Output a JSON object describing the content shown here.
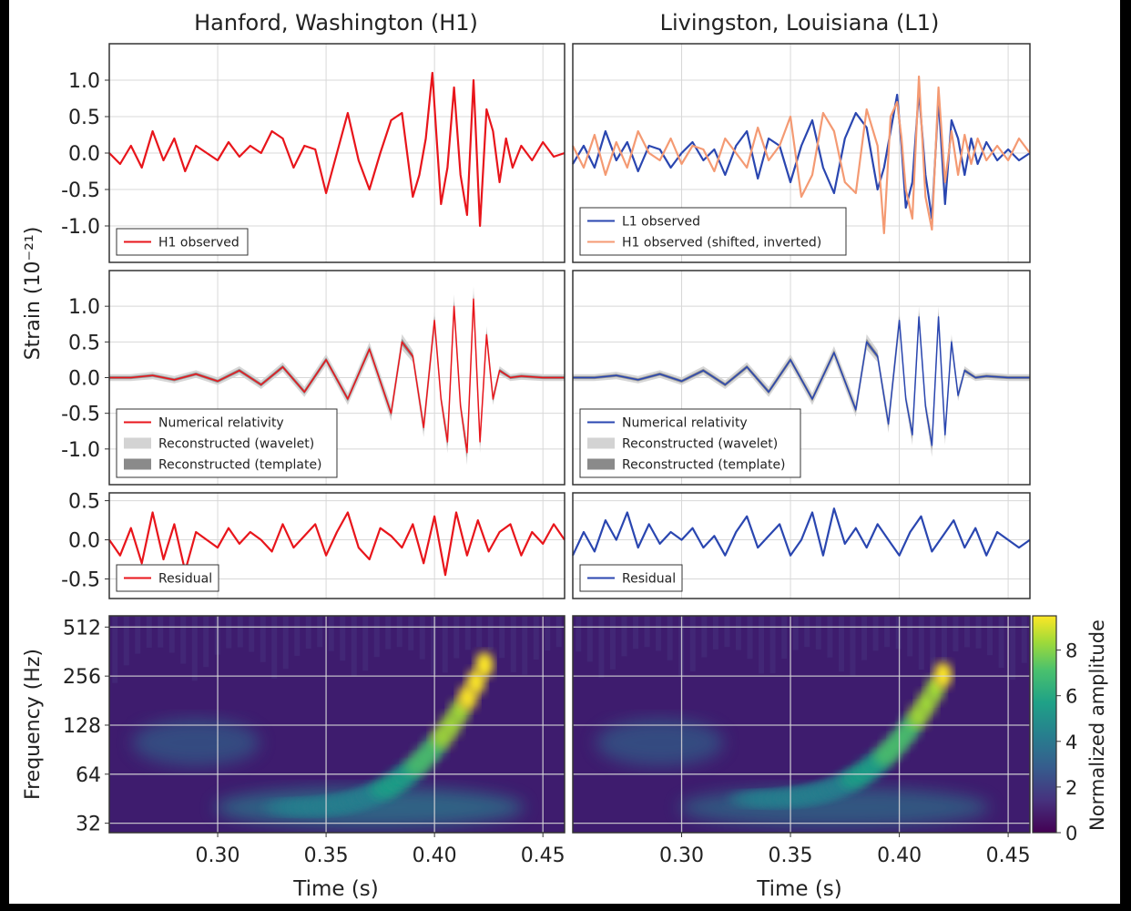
{
  "figure": {
    "ylabel_strain": "Strain (10⁻²¹)",
    "ylabel_freq": "Frequency (Hz)",
    "colorbar_label": "Normalized amplitude"
  },
  "colors": {
    "h1": "#e8151b",
    "l1": "#2a46b0",
    "h1_shifted": "#f49a73",
    "wavelet_band": "#d3d3d3",
    "template_band": "#8a8a8a"
  },
  "chart_data": [
    {
      "type": "line",
      "id": "h1_observed",
      "column": "H1",
      "title": "Hanford, Washington (H1)",
      "xlim": [
        0.25,
        0.46
      ],
      "ylim": [
        -1.5,
        1.5
      ],
      "yticks": [
        "1.0",
        "0.5",
        "0.0",
        "-0.5",
        "-1.0"
      ],
      "grid": true,
      "legend_position": "bottom-left",
      "series": [
        {
          "name": "H1 observed",
          "color": "#e8151b",
          "kind": "line",
          "x": [
            0.25,
            0.255,
            0.26,
            0.265,
            0.27,
            0.275,
            0.28,
            0.285,
            0.29,
            0.295,
            0.3,
            0.305,
            0.31,
            0.315,
            0.32,
            0.325,
            0.33,
            0.335,
            0.34,
            0.345,
            0.35,
            0.355,
            0.36,
            0.365,
            0.37,
            0.375,
            0.38,
            0.385,
            0.39,
            0.393,
            0.396,
            0.399,
            0.401,
            0.403,
            0.406,
            0.409,
            0.412,
            0.415,
            0.418,
            0.421,
            0.424,
            0.427,
            0.43,
            0.433,
            0.436,
            0.44,
            0.445,
            0.45,
            0.455,
            0.46
          ],
          "y": [
            0.0,
            -0.15,
            0.1,
            -0.2,
            0.3,
            -0.1,
            0.2,
            -0.25,
            0.1,
            0.0,
            -0.1,
            0.15,
            -0.05,
            0.1,
            0.0,
            0.3,
            0.2,
            -0.2,
            0.1,
            0.05,
            -0.55,
            0.0,
            0.55,
            -0.1,
            -0.5,
            0.0,
            0.45,
            0.55,
            -0.6,
            -0.3,
            0.2,
            1.1,
            0.2,
            -0.7,
            -0.2,
            0.9,
            -0.3,
            -0.85,
            1.0,
            -1.0,
            0.6,
            0.3,
            -0.4,
            0.2,
            -0.2,
            0.1,
            -0.1,
            0.15,
            -0.05,
            0.0
          ]
        }
      ]
    },
    {
      "type": "line",
      "id": "l1_observed",
      "column": "L1",
      "title": "Livingston, Louisiana (L1)",
      "xlim": [
        0.25,
        0.46
      ],
      "ylim": [
        -1.5,
        1.5
      ],
      "grid": true,
      "legend_position": "bottom-left",
      "series": [
        {
          "name": "L1 observed",
          "color": "#2a46b0",
          "kind": "line",
          "x": [
            0.25,
            0.255,
            0.26,
            0.265,
            0.27,
            0.275,
            0.28,
            0.285,
            0.29,
            0.295,
            0.3,
            0.305,
            0.31,
            0.315,
            0.32,
            0.325,
            0.33,
            0.335,
            0.34,
            0.345,
            0.35,
            0.355,
            0.36,
            0.365,
            0.37,
            0.375,
            0.38,
            0.385,
            0.39,
            0.393,
            0.396,
            0.399,
            0.401,
            0.403,
            0.406,
            0.409,
            0.412,
            0.415,
            0.418,
            0.421,
            0.424,
            0.427,
            0.43,
            0.433,
            0.436,
            0.44,
            0.445,
            0.45,
            0.455,
            0.46
          ],
          "y": [
            -0.15,
            0.1,
            -0.2,
            0.3,
            -0.1,
            0.15,
            -0.25,
            0.1,
            0.05,
            -0.2,
            0.0,
            0.15,
            -0.1,
            0.05,
            -0.3,
            0.1,
            0.3,
            -0.35,
            0.2,
            0.1,
            -0.4,
            0.1,
            0.45,
            -0.2,
            -0.55,
            0.2,
            0.55,
            0.35,
            -0.5,
            -0.2,
            0.3,
            0.8,
            0.1,
            -0.75,
            -0.4,
            0.85,
            -0.3,
            -0.9,
            0.75,
            -0.7,
            0.45,
            0.2,
            -0.3,
            0.2,
            -0.15,
            0.15,
            -0.1,
            0.05,
            -0.1,
            0.0
          ]
        },
        {
          "name": "H1 observed (shifted, inverted)",
          "color": "#f49a73",
          "kind": "line",
          "x": [
            0.25,
            0.255,
            0.26,
            0.265,
            0.27,
            0.275,
            0.28,
            0.285,
            0.29,
            0.295,
            0.3,
            0.305,
            0.31,
            0.315,
            0.32,
            0.325,
            0.33,
            0.335,
            0.34,
            0.345,
            0.35,
            0.355,
            0.36,
            0.365,
            0.37,
            0.375,
            0.38,
            0.385,
            0.39,
            0.393,
            0.396,
            0.399,
            0.401,
            0.403,
            0.406,
            0.409,
            0.412,
            0.415,
            0.418,
            0.421,
            0.424,
            0.427,
            0.43,
            0.433,
            0.436,
            0.44,
            0.445,
            0.45,
            0.455,
            0.46
          ],
          "y": [
            0.1,
            -0.2,
            0.25,
            -0.3,
            0.15,
            -0.2,
            0.3,
            0.0,
            -0.1,
            0.2,
            -0.15,
            0.1,
            0.05,
            -0.25,
            0.2,
            0.0,
            -0.2,
            0.35,
            -0.1,
            0.1,
            0.5,
            -0.6,
            -0.3,
            0.55,
            0.3,
            -0.4,
            -0.55,
            0.6,
            0.1,
            -1.1,
            0.5,
            0.7,
            0.2,
            -0.5,
            -0.9,
            1.05,
            -0.6,
            -1.05,
            0.9,
            -0.4,
            0.3,
            -0.3,
            0.25,
            -0.15,
            0.2,
            -0.1,
            0.1,
            -0.1,
            0.2,
            0.0
          ]
        }
      ]
    },
    {
      "type": "line",
      "id": "h1_reconstructed",
      "column": "H1",
      "xlim": [
        0.25,
        0.46
      ],
      "ylim": [
        -1.5,
        1.5
      ],
      "yticks": [
        "1.0",
        "0.5",
        "0.0",
        "-0.5",
        "-1.0"
      ],
      "grid": true,
      "legend_position": "bottom-left",
      "series": [
        {
          "name": "Reconstructed (wavelet)",
          "color": "#d3d3d3",
          "kind": "band",
          "halfwidth": 0.12
        },
        {
          "name": "Reconstructed (template)",
          "color": "#8a8a8a",
          "kind": "band",
          "halfwidth": 0.05
        },
        {
          "name": "Numerical relativity",
          "color": "#e8151b",
          "kind": "line",
          "x": [
            0.25,
            0.26,
            0.27,
            0.28,
            0.29,
            0.3,
            0.31,
            0.32,
            0.33,
            0.34,
            0.35,
            0.36,
            0.37,
            0.38,
            0.385,
            0.39,
            0.395,
            0.4,
            0.403,
            0.406,
            0.409,
            0.412,
            0.415,
            0.418,
            0.421,
            0.424,
            0.427,
            0.43,
            0.435,
            0.44,
            0.45,
            0.46
          ],
          "y": [
            0.0,
            0.0,
            0.03,
            -0.03,
            0.05,
            -0.05,
            0.1,
            -0.1,
            0.15,
            -0.2,
            0.25,
            -0.3,
            0.4,
            -0.5,
            0.5,
            0.3,
            -0.7,
            0.8,
            -0.3,
            -0.9,
            1.0,
            -0.4,
            -1.05,
            1.1,
            -0.9,
            0.6,
            -0.3,
            0.1,
            0.0,
            0.02,
            0.0,
            0.0
          ]
        }
      ]
    },
    {
      "type": "line",
      "id": "l1_reconstructed",
      "column": "L1",
      "xlim": [
        0.25,
        0.46
      ],
      "ylim": [
        -1.5,
        1.5
      ],
      "grid": true,
      "legend_position": "bottom-left",
      "series": [
        {
          "name": "Reconstructed (wavelet)",
          "color": "#d3d3d3",
          "kind": "band",
          "halfwidth": 0.12
        },
        {
          "name": "Reconstructed (template)",
          "color": "#8a8a8a",
          "kind": "band",
          "halfwidth": 0.05
        },
        {
          "name": "Numerical relativity",
          "color": "#2a46b0",
          "kind": "line",
          "x": [
            0.25,
            0.26,
            0.27,
            0.28,
            0.29,
            0.3,
            0.31,
            0.32,
            0.33,
            0.34,
            0.35,
            0.36,
            0.37,
            0.38,
            0.385,
            0.39,
            0.395,
            0.4,
            0.403,
            0.406,
            0.409,
            0.412,
            0.415,
            0.418,
            0.421,
            0.424,
            0.427,
            0.43,
            0.435,
            0.44,
            0.45,
            0.46
          ],
          "y": [
            0.0,
            0.0,
            0.03,
            -0.03,
            0.05,
            -0.05,
            0.1,
            -0.1,
            0.15,
            -0.2,
            0.25,
            -0.3,
            0.35,
            -0.45,
            0.5,
            0.3,
            -0.65,
            0.8,
            -0.3,
            -0.8,
            0.85,
            -0.4,
            -0.95,
            0.85,
            -0.8,
            0.5,
            -0.25,
            0.1,
            0.0,
            0.02,
            0.0,
            0.0
          ]
        }
      ]
    },
    {
      "type": "line",
      "id": "h1_residual",
      "column": "H1",
      "xlim": [
        0.25,
        0.46
      ],
      "ylim": [
        -0.75,
        0.6
      ],
      "yticks": [
        "0.5",
        "0.0",
        "-0.5"
      ],
      "grid": true,
      "legend_position": "bottom-left",
      "series": [
        {
          "name": "Residual",
          "color": "#e8151b",
          "kind": "line",
          "x": [
            0.25,
            0.255,
            0.26,
            0.265,
            0.27,
            0.275,
            0.28,
            0.285,
            0.29,
            0.295,
            0.3,
            0.305,
            0.31,
            0.315,
            0.32,
            0.325,
            0.33,
            0.335,
            0.34,
            0.345,
            0.35,
            0.355,
            0.36,
            0.365,
            0.37,
            0.375,
            0.38,
            0.385,
            0.39,
            0.395,
            0.4,
            0.405,
            0.41,
            0.415,
            0.42,
            0.425,
            0.43,
            0.435,
            0.44,
            0.445,
            0.45,
            0.455,
            0.46
          ],
          "y": [
            0.0,
            -0.2,
            0.15,
            -0.3,
            0.35,
            -0.25,
            0.2,
            -0.4,
            0.1,
            0.0,
            -0.1,
            0.15,
            -0.05,
            0.1,
            0.0,
            -0.15,
            0.2,
            -0.1,
            0.05,
            0.2,
            -0.2,
            0.1,
            0.35,
            -0.1,
            -0.25,
            0.15,
            0.05,
            -0.1,
            0.2,
            -0.3,
            0.3,
            -0.45,
            0.35,
            -0.2,
            0.25,
            -0.15,
            0.1,
            0.2,
            -0.2,
            0.1,
            -0.05,
            0.2,
            0.0
          ]
        }
      ]
    },
    {
      "type": "line",
      "id": "l1_residual",
      "column": "L1",
      "xlim": [
        0.25,
        0.46
      ],
      "ylim": [
        -0.75,
        0.6
      ],
      "grid": true,
      "legend_position": "bottom-left",
      "series": [
        {
          "name": "Residual",
          "color": "#2a46b0",
          "kind": "line",
          "x": [
            0.25,
            0.255,
            0.26,
            0.265,
            0.27,
            0.275,
            0.28,
            0.285,
            0.29,
            0.295,
            0.3,
            0.305,
            0.31,
            0.315,
            0.32,
            0.325,
            0.33,
            0.335,
            0.34,
            0.345,
            0.35,
            0.355,
            0.36,
            0.365,
            0.37,
            0.375,
            0.38,
            0.385,
            0.39,
            0.395,
            0.4,
            0.405,
            0.41,
            0.415,
            0.42,
            0.425,
            0.43,
            0.435,
            0.44,
            0.445,
            0.45,
            0.455,
            0.46
          ],
          "y": [
            -0.2,
            0.1,
            -0.15,
            0.25,
            0.0,
            0.35,
            -0.1,
            0.2,
            -0.05,
            0.1,
            0.0,
            0.15,
            -0.1,
            0.05,
            -0.2,
            0.1,
            0.3,
            -0.1,
            0.05,
            0.2,
            -0.2,
            0.0,
            0.35,
            -0.2,
            0.4,
            -0.05,
            0.15,
            -0.1,
            0.2,
            0.0,
            -0.2,
            0.1,
            0.3,
            -0.15,
            0.05,
            0.25,
            -0.1,
            0.15,
            -0.2,
            0.1,
            0.0,
            -0.1,
            0.0
          ]
        }
      ]
    },
    {
      "type": "heatmap",
      "id": "h1_spectrogram",
      "column": "H1",
      "xlim": [
        0.25,
        0.46
      ],
      "ylim_hz": [
        28,
        600
      ],
      "yscale": "log2",
      "xticks": [
        "0.30",
        "0.35",
        "0.40",
        "0.45"
      ],
      "xtick_values": [
        0.3,
        0.35,
        0.4,
        0.45
      ],
      "yticks": [
        "512",
        "256",
        "128",
        "64",
        "32"
      ],
      "ytick_values": [
        512,
        256,
        128,
        64,
        32
      ],
      "xlabel": "Time (s)",
      "ylabel": "Frequency (Hz)",
      "grid": true,
      "chirp": {
        "t_start": 0.33,
        "t_peak": 0.423,
        "f_start_hz": 40,
        "f_peak_hz": 300,
        "peak_amplitude": 9
      },
      "colormap": "viridis"
    },
    {
      "type": "heatmap",
      "id": "l1_spectrogram",
      "column": "L1",
      "xlim": [
        0.25,
        0.46
      ],
      "ylim_hz": [
        28,
        600
      ],
      "yscale": "log2",
      "xticks": [
        "0.30",
        "0.35",
        "0.40",
        "0.45"
      ],
      "xtick_values": [
        0.3,
        0.35,
        0.4,
        0.45
      ],
      "xlabel": "Time (s)",
      "grid": true,
      "chirp": {
        "t_start": 0.33,
        "t_peak": 0.42,
        "f_start_hz": 45,
        "f_peak_hz": 260,
        "peak_amplitude": 7.5
      },
      "colormap": "viridis"
    }
  ],
  "colorbar": {
    "ticks": [
      "8",
      "6",
      "4",
      "2",
      "0"
    ],
    "tick_values": [
      8,
      6,
      4,
      2,
      0
    ],
    "range": [
      0,
      9.5
    ],
    "label": "Normalized amplitude"
  }
}
